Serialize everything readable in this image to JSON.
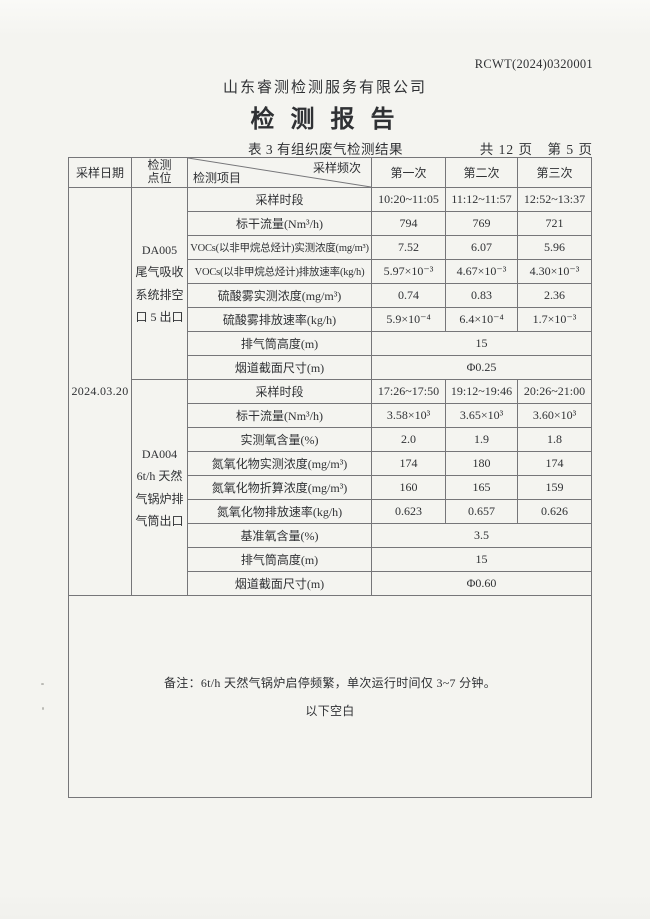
{
  "page": {
    "report_no": "RCWT(2024)0320001",
    "company": "山东睿测检测服务有限公司",
    "title": "检 测 报 告",
    "table_caption": "表 3  有组织废气检测结果",
    "page_info": "共 12 页　第 5 页"
  },
  "table": {
    "header": {
      "col_date": "采样日期",
      "col_point": "检测点位",
      "diag_top": "采样频次",
      "diag_bottom": "检测项目",
      "runs": [
        "第一次",
        "第二次",
        "第三次"
      ]
    },
    "sample_date": "2024.03.20",
    "blocks": [
      {
        "point": "DA005\n尾气吸收\n系统排空\n口 5 出口",
        "rows": [
          {
            "label": "采样时段",
            "values": [
              "10:20~11:05",
              "11:12~11:57",
              "12:52~13:37"
            ]
          },
          {
            "label": "标干流量(Nm³/h)",
            "values": [
              "794",
              "769",
              "721"
            ]
          },
          {
            "label": "VOCs(以非甲烷总烃计)实测浓度(mg/m³)",
            "values": [
              "7.52",
              "6.07",
              "5.96"
            ]
          },
          {
            "label": "VOCs(以非甲烷总烃计)排放速率(kg/h)",
            "values": [
              "5.97×10⁻³",
              "4.67×10⁻³",
              "4.30×10⁻³"
            ]
          },
          {
            "label": "硫酸雾实测浓度(mg/m³)",
            "values": [
              "0.74",
              "0.83",
              "2.36"
            ]
          },
          {
            "label": "硫酸雾排放速率(kg/h)",
            "values": [
              "5.9×10⁻⁴",
              "6.4×10⁻⁴",
              "1.7×10⁻³"
            ]
          },
          {
            "label": "排气筒高度(m)",
            "merged": "15"
          },
          {
            "label": "烟道截面尺寸(m)",
            "merged": "Φ0.25"
          }
        ]
      },
      {
        "point": "DA004\n6t/h 天然\n气锅炉排\n气筒出口",
        "rows": [
          {
            "label": "采样时段",
            "values": [
              "17:26~17:50",
              "19:12~19:46",
              "20:26~21:00"
            ]
          },
          {
            "label": "标干流量(Nm³/h)",
            "values": [
              "3.58×10³",
              "3.65×10³",
              "3.60×10³"
            ]
          },
          {
            "label": "实测氧含量(%)",
            "values": [
              "2.0",
              "1.9",
              "1.8"
            ]
          },
          {
            "label": "氮氧化物实测浓度(mg/m³)",
            "values": [
              "174",
              "180",
              "174"
            ]
          },
          {
            "label": "氮氧化物折算浓度(mg/m³)",
            "values": [
              "160",
              "165",
              "159"
            ]
          },
          {
            "label": "氮氧化物排放速率(kg/h)",
            "values": [
              "0.623",
              "0.657",
              "0.626"
            ]
          },
          {
            "label": "基准氧含量(%)",
            "merged": "3.5"
          },
          {
            "label": "排气筒高度(m)",
            "merged": "15"
          },
          {
            "label": "烟道截面尺寸(m)",
            "merged": "Φ0.60"
          }
        ]
      }
    ],
    "remark": "备注：6t/h 天然气锅炉启停频繁，单次运行时间仅 3~7 分钟。",
    "blank_note": "以下空白"
  }
}
